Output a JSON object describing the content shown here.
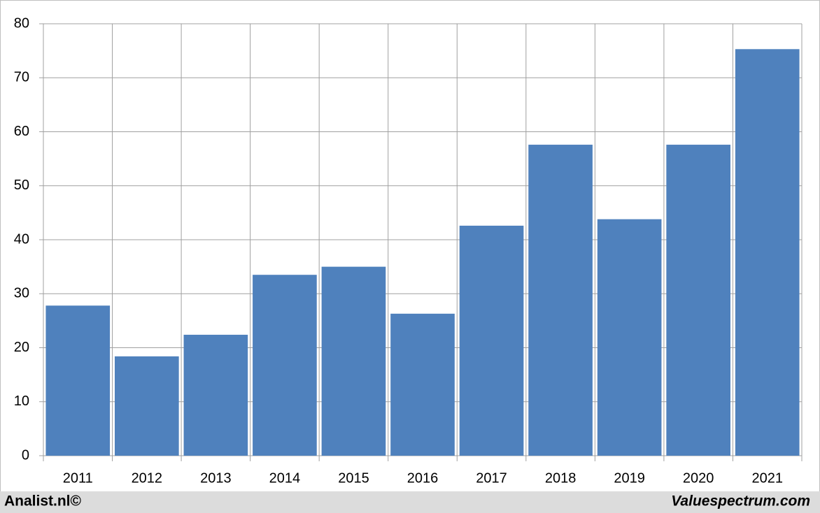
{
  "chart_data": {
    "type": "bar",
    "categories": [
      "2011",
      "2012",
      "2013",
      "2014",
      "2015",
      "2016",
      "2017",
      "2018",
      "2019",
      "2020",
      "2021"
    ],
    "values": [
      27.8,
      18.4,
      22.4,
      33.5,
      35.0,
      26.3,
      42.6,
      57.6,
      43.8,
      57.6,
      75.3
    ],
    "color": "#4f81bd",
    "ylim": [
      0,
      80
    ],
    "yticks": [
      0,
      10,
      20,
      30,
      40,
      50,
      60,
      70,
      80
    ],
    "grid": true,
    "footer_left": "Analist.nl©",
    "footer_right": "Valuespectrum.com"
  }
}
